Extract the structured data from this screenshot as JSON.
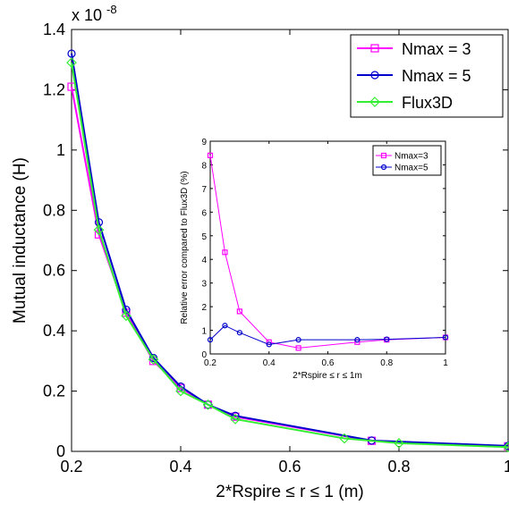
{
  "chart_data": [
    {
      "type": "line",
      "xlabel": "2*Rspire ≤ r ≤ 1 (m)",
      "ylabel": "Mutual inductance (H)",
      "exponent_label": "x 10",
      "exponent_power": "-8",
      "xlim": [
        0.2,
        1.0
      ],
      "ylim": [
        0,
        1.4
      ],
      "xticks": [
        "0.2",
        "0.4",
        "0.6",
        "0.8",
        "1"
      ],
      "yticks": [
        "0",
        "0.2",
        "0.4",
        "0.6",
        "0.8",
        "1",
        "1.2",
        "1.4"
      ],
      "legend_position": "top-right",
      "series": [
        {
          "name": "Nmax = 3",
          "color": "#ff00ff",
          "marker": "square",
          "x": [
            0.2,
            0.25,
            0.3,
            0.35,
            0.4,
            0.45,
            0.5,
            0.75,
            1.0
          ],
          "y": [
            1.21,
            0.72,
            0.46,
            0.3,
            0.21,
            0.155,
            0.115,
            0.035,
            0.017
          ]
        },
        {
          "name": "Nmax = 5",
          "color": "#0000cc",
          "marker": "circle",
          "x": [
            0.2,
            0.25,
            0.3,
            0.35,
            0.4,
            0.45,
            0.5,
            0.75,
            1.0
          ],
          "y": [
            1.32,
            0.76,
            0.47,
            0.31,
            0.215,
            0.155,
            0.118,
            0.036,
            0.018
          ]
        },
        {
          "name": "Flux3D",
          "color": "#33ee33",
          "marker": "diamond",
          "x": [
            0.2,
            0.25,
            0.3,
            0.35,
            0.4,
            0.45,
            0.5,
            0.7,
            0.8,
            1.0
          ],
          "y": [
            1.29,
            0.735,
            0.45,
            0.305,
            0.2,
            0.155,
            0.107,
            0.043,
            0.027,
            0.014
          ]
        }
      ]
    },
    {
      "type": "line",
      "xlabel": "2*Rspire ≤ r ≤ 1m",
      "ylabel": "Relative error compared to Flux3D (%)",
      "xlim": [
        0.2,
        1.0
      ],
      "ylim": [
        0,
        9
      ],
      "xticks": [
        "0.2",
        "0.4",
        "0.6",
        "0.8",
        "1"
      ],
      "yticks": [
        "0",
        "1",
        "2",
        "3",
        "4",
        "5",
        "6",
        "7",
        "8",
        "9"
      ],
      "legend_position": "top-right",
      "series": [
        {
          "name": "Nmax=3",
          "color": "#ff00ff",
          "marker": "square",
          "x": [
            0.2,
            0.25,
            0.3,
            0.4,
            0.5,
            0.7,
            0.8,
            1.0
          ],
          "y": [
            8.4,
            4.3,
            1.8,
            0.5,
            0.25,
            0.5,
            0.6,
            0.7
          ]
        },
        {
          "name": "Nmax=5",
          "color": "#0000cc",
          "marker": "circle",
          "x": [
            0.2,
            0.25,
            0.3,
            0.4,
            0.5,
            0.7,
            0.8,
            1.0
          ],
          "y": [
            0.6,
            1.2,
            0.9,
            0.4,
            0.6,
            0.6,
            0.62,
            0.7
          ]
        }
      ]
    }
  ]
}
